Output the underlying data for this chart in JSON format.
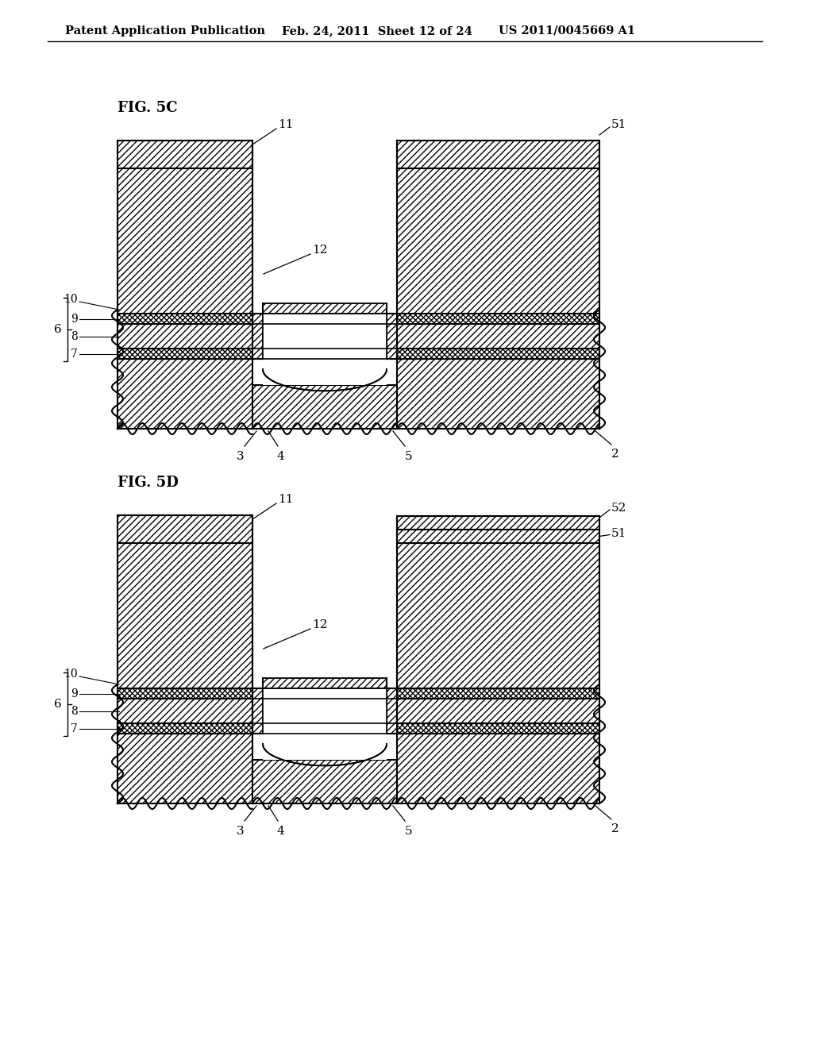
{
  "bg_color": "#ffffff",
  "header_left": "Patent Application Publication",
  "header_mid": "Feb. 24, 2011  Sheet 12 of 24",
  "header_right": "US 2011/0045669 A1",
  "fig5c_label": "FIG. 5C",
  "fig5d_label": "FIG. 5D",
  "line_color": "#000000"
}
